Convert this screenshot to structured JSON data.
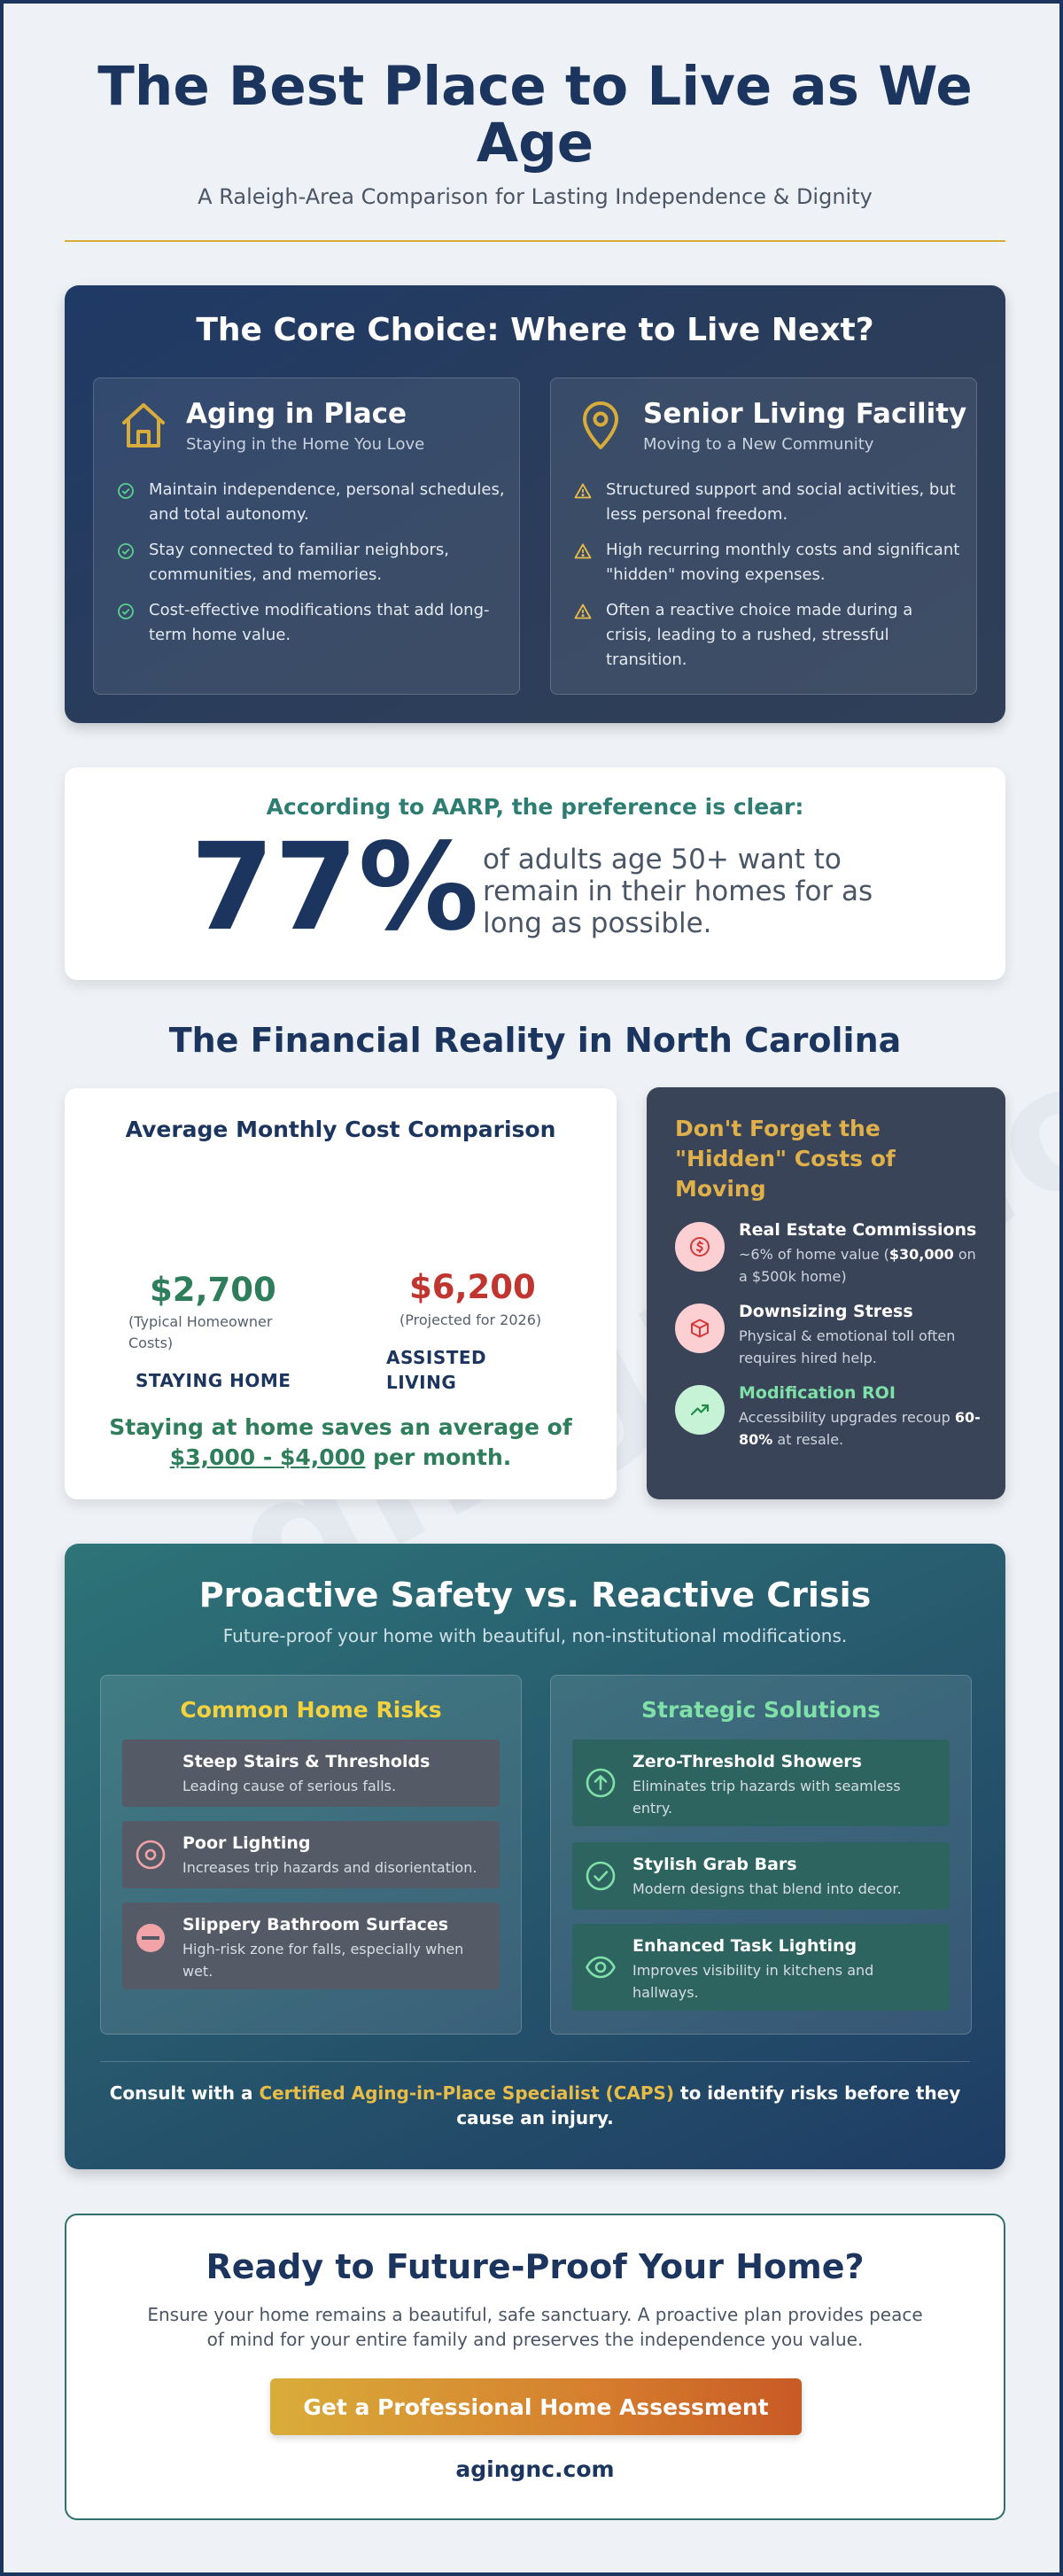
{
  "header": {
    "title": "The Best Place to Live as We Age",
    "subtitle": "A Raleigh-Area Comparison for Lasting Independence & Dignity"
  },
  "watermark": "agingnc.com",
  "core": {
    "title": "The Core Choice: Where to Live Next?",
    "aging": {
      "name": "Aging in Place",
      "sub": "Staying in the Home You Love",
      "points": [
        "Maintain independence, personal schedules, and total autonomy.",
        "Stay connected to familiar neighbors, communities, and memories.",
        "Cost-effective modifications that add long-term home value."
      ]
    },
    "facility": {
      "name": "Senior Living Facility",
      "sub": "Moving to a New Community",
      "points": [
        "Structured support and social activities, but less personal freedom.",
        "High recurring monthly costs and significant \"hidden\" moving expenses.",
        "Often a reactive choice made during a crisis, leading to a rushed, stressful transition."
      ]
    }
  },
  "stat": {
    "intro": "According to AARP, the preference is clear:",
    "value": "77%",
    "text": "of adults age 50+ want to remain in their homes for as long as possible."
  },
  "financial": {
    "title": "The Financial Reality in North Carolina",
    "cost_title": "Average Monthly Cost Comparison",
    "staying_amount": "$2,700",
    "staying_note": "(Typical Homeowner Costs)",
    "staying_label": "STAYING HOME",
    "assisted_amount": "$6,200",
    "assisted_note": "(Projected for 2026)",
    "assisted_label": "ASSISTED LIVING",
    "savings_prefix": "Staying at home saves an average of",
    "savings_range": "$3,000 - $4,000",
    "savings_suffix": "per month."
  },
  "chart_data": {
    "type": "bar",
    "title": "Average Monthly Cost Comparison",
    "categories": [
      "STAYING HOME",
      "ASSISTED LIVING"
    ],
    "values": [
      2700,
      6200
    ],
    "value_labels": [
      "$2,700",
      "$6,200"
    ],
    "notes": [
      "(Typical Homeowner Costs)",
      "(Projected for 2026)"
    ],
    "colors": [
      "#2e7d5b",
      "#c0352f"
    ],
    "xlabel": "",
    "ylabel": ""
  },
  "hidden": {
    "title": "Don't Forget the \"Hidden\" Costs of Moving",
    "items": [
      {
        "head": "Real Estate Commissions",
        "pre": "~6% of home value (",
        "bold": "$30,000",
        "post": " on a $500k home)",
        "icon": "dollar-icon",
        "color": "#fcd0d3",
        "stroke": "#d23a3a",
        "head_color": "#ffffff"
      },
      {
        "head": "Downsizing Stress",
        "pre": "Physical & emotional toll often requires hired help.",
        "bold": "",
        "post": "",
        "icon": "box-icon",
        "color": "#fcd0d3",
        "stroke": "#d23a3a",
        "head_color": "#ffffff"
      },
      {
        "head": "Modification ROI",
        "pre": "Accessibility upgrades recoup ",
        "bold": "60-80%",
        "post": " at resale.",
        "icon": "trend-up-icon",
        "color": "#c6f3d6",
        "stroke": "#238a4c",
        "head_color": "#7fe0a8"
      }
    ]
  },
  "safety": {
    "title": "Proactive Safety vs. Reactive Crisis",
    "subtitle": "Future-proof your home with beautiful, non-institutional modifications.",
    "risks_title": "Common Home Risks",
    "risks": [
      {
        "head": "Steep Stairs & Thresholds",
        "body": "Leading cause of serious falls."
      },
      {
        "head": "Poor Lighting",
        "body": "Increases trip hazards and disorientation."
      },
      {
        "head": "Slippery Bathroom Surfaces",
        "body": "High-risk zone for falls, especially when wet."
      }
    ],
    "solutions_title": "Strategic Solutions",
    "solutions": [
      {
        "head": "Zero-Threshold Showers",
        "body": "Eliminates trip hazards with seamless entry."
      },
      {
        "head": "Stylish Grab Bars",
        "body": "Modern designs that blend into decor."
      },
      {
        "head": "Enhanced Task Lighting",
        "body": "Improves visibility in kitchens and hallways."
      }
    ],
    "consult_pre": "Consult with a",
    "consult_hl": "Certified Aging-in-Place Specialist (CAPS)",
    "consult_post": "to identify risks before they cause an injury."
  },
  "cta": {
    "title": "Ready to Future-Proof Your Home?",
    "body": "Ensure your home remains a beautiful, safe sanctuary. A proactive plan provides peace of mind for your entire family and preserves the independence you value.",
    "button": "Get a Professional Home Assessment",
    "site": "agingnc.com"
  },
  "colors": {
    "navy": "#1c355e",
    "gold": "#d8ac3a",
    "teal": "#2e7d72",
    "green": "#2e7d5b",
    "red": "#c0352f"
  }
}
